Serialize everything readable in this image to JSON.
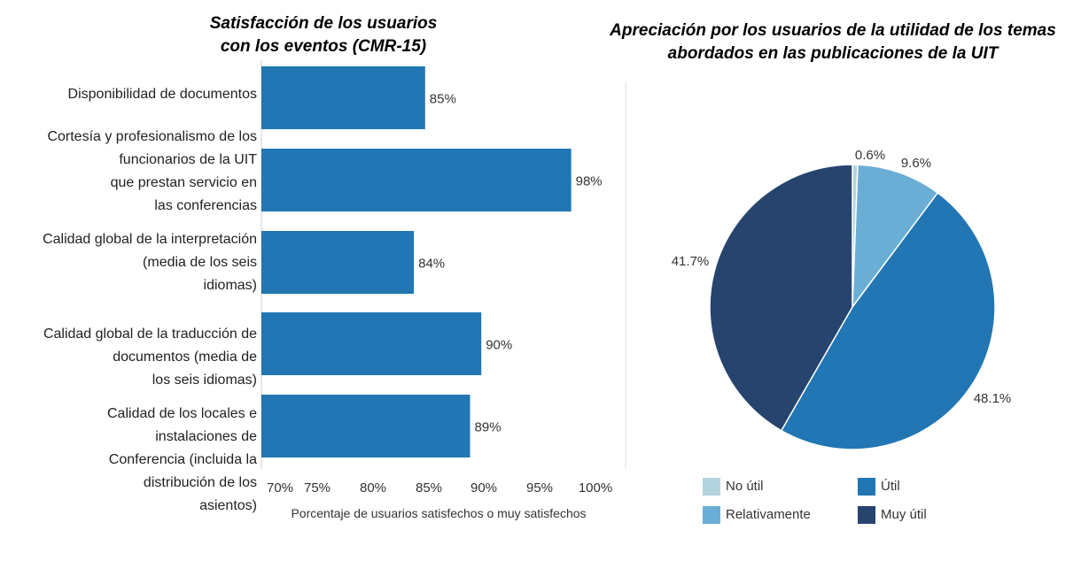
{
  "chart_data": [
    {
      "type": "bar",
      "orientation": "horizontal",
      "title_line1": "Satisfacción de los usuarios",
      "title_line2": "con los eventos (CMR-15)",
      "categories": [
        [
          "Disponibilidad de documentos"
        ],
        [
          "Cortesía y profesionalismo de los",
          "funcionarios de la UIT",
          "que prestan servicio en",
          "las conferencias"
        ],
        [
          "Calidad global de la interpretación",
          "(media de los seis",
          "idiomas)"
        ],
        [
          "Calidad global de la traducción de",
          "documentos (media de",
          "los seis idiomas)"
        ],
        [
          "Calidad de los locales e",
          "instalaciones de",
          "Conferencia (incluida la",
          "distribución de los",
          "asientos)"
        ]
      ],
      "values": [
        85,
        98,
        84,
        90,
        89
      ],
      "value_labels": [
        "85%",
        "98%",
        "84%",
        "90%",
        "89%"
      ],
      "xlim": [
        70,
        100
      ],
      "xticks": [
        "70%",
        "75%",
        "80%",
        "85%",
        "90%",
        "95%",
        "100%"
      ],
      "xlabel": "Porcentaje de usuarios satisfechos o muy satisfechos",
      "color": "#2176b3"
    },
    {
      "type": "pie",
      "title_line1": "Apreciación por los usuarios de la utilidad de los temas",
      "title_line2": "abordados en las publicaciones de la UIT",
      "slices": [
        {
          "name": "No útil",
          "value": 0.6,
          "label": "0.6%",
          "color": "#b3d4de"
        },
        {
          "name": "Relativamente",
          "value": 9.6,
          "label": "9.6%",
          "color": "#6aaed6"
        },
        {
          "name": "Útil",
          "value": 48.1,
          "label": "48.1%",
          "color": "#2176b3"
        },
        {
          "name": "Muy útil",
          "value": 41.7,
          "label": "41.7%",
          "color": "#27446e"
        }
      ],
      "legend_position": "bottom"
    }
  ]
}
